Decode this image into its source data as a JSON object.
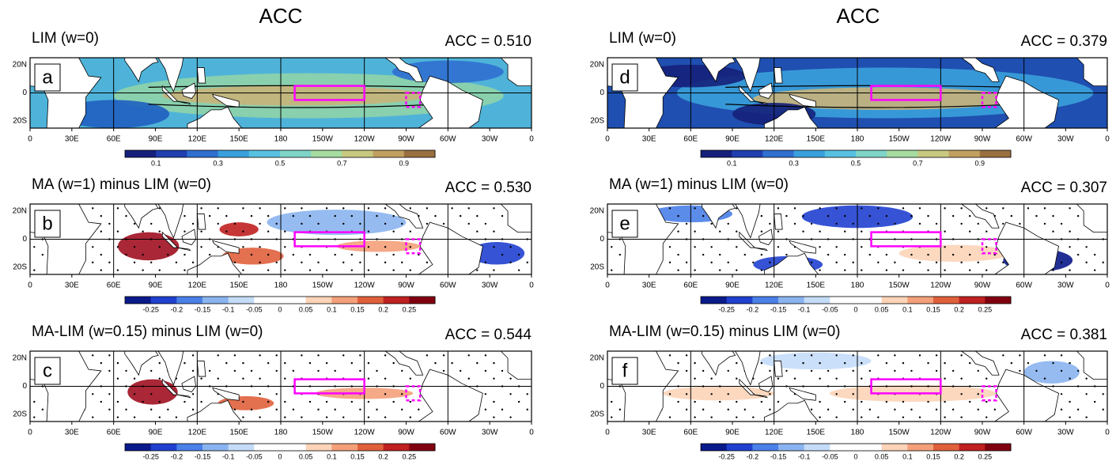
{
  "columns": [
    {
      "title": "ACC",
      "panels": [
        {
          "letter": "a",
          "label": "LIM (w=0)",
          "acc": "ACC = 0.510"
        },
        {
          "letter": "b",
          "label": "MA (w=1) minus LIM (w=0)",
          "acc": "ACC = 0.530"
        },
        {
          "letter": "c",
          "label": "MA-LIM (w=0.15) minus LIM (w=0)",
          "acc": "ACC = 0.544"
        }
      ]
    },
    {
      "title": "ACC",
      "panels": [
        {
          "letter": "d",
          "label": "LIM (w=0)",
          "acc": "ACC = 0.379"
        },
        {
          "letter": "e",
          "label": "MA (w=1) minus LIM (w=0)",
          "acc": "ACC = 0.307"
        },
        {
          "letter": "f",
          "label": "MA-LIM (w=0.15) minus LIM (w=0)",
          "acc": "ACC = 0.381"
        }
      ]
    }
  ],
  "lat_labels": [
    "20N",
    "0",
    "20S"
  ],
  "lon_labels": [
    "0",
    "30E",
    "60E",
    "90E",
    "120E",
    "150E",
    "180",
    "150W",
    "120W",
    "90W",
    "60W",
    "30W",
    "0"
  ],
  "colorbar_sequential_labels": [
    "0.1",
    "0.3",
    "0.5",
    "0.7",
    "0.9"
  ],
  "colorbar_diverging_labels": [
    "-0.25",
    "-0.2",
    "-0.15",
    "-0.1",
    "-0.05",
    "0",
    "0.05",
    "0.1",
    "0.15",
    "0.2",
    "0.25"
  ]
}
